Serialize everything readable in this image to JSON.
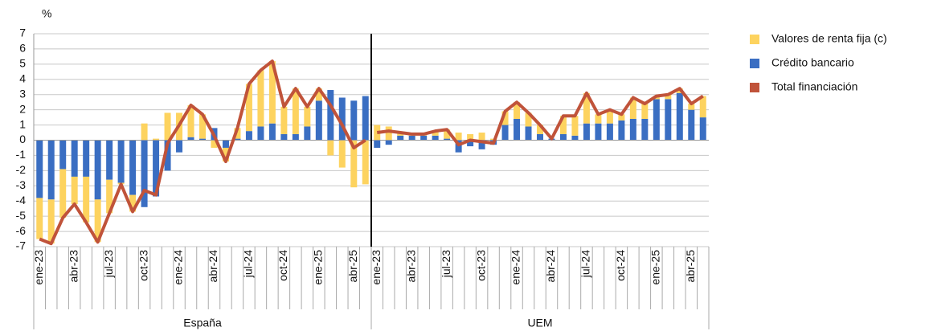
{
  "chart_data": {
    "type": "bar",
    "unit": "%",
    "groups": [
      "España",
      "UEM"
    ],
    "categories": [
      "ene-23",
      null,
      null,
      "abr-23",
      null,
      null,
      "jul-23",
      null,
      null,
      "oct-23",
      null,
      null,
      "ene-24",
      null,
      null,
      "abr-24",
      null,
      null,
      "jul-24",
      null,
      null,
      "oct-24",
      null,
      null,
      "ene-25",
      null,
      null,
      "abr-25",
      null
    ],
    "series": [
      {
        "name": "Valores de renta fija (c)",
        "color": "#fdd35f",
        "kind": "bar",
        "values": [
          [
            -2.7,
            -2.9,
            -3.2,
            -1.8,
            -3.0,
            -2.8,
            -2.2,
            -0.1,
            -1.1,
            1.1,
            0.1,
            1.8,
            1.8,
            2.1,
            1.6,
            -0.5,
            -0.9,
            0.7,
            3.1,
            3.7,
            4.1,
            1.8,
            3.0,
            1.3,
            0.8,
            -1.0,
            -1.8,
            -3.1,
            -2.9
          ],
          [
            1.0,
            0.9,
            0.2,
            0.1,
            0.1,
            0.3,
            0.6,
            0.5,
            0.4,
            0.5,
            0.1,
            0.9,
            1.1,
            0.9,
            0.6,
            0.0,
            1.2,
            1.3,
            2.0,
            0.6,
            0.9,
            0.4,
            1.4,
            1.0,
            0.2,
            0.3,
            0.3,
            0.4,
            1.4
          ]
        ]
      },
      {
        "name": "Crédito bancario",
        "color": "#3a6ec2",
        "kind": "bar",
        "values": [
          [
            -3.8,
            -3.9,
            -1.9,
            -2.4,
            -2.4,
            -3.9,
            -2.6,
            -2.8,
            -3.6,
            -4.4,
            -3.7,
            -2.0,
            -0.8,
            0.2,
            0.1,
            0.8,
            -0.5,
            0.1,
            0.6,
            0.9,
            1.1,
            0.4,
            0.4,
            0.9,
            2.6,
            3.3,
            2.8,
            2.6,
            2.9
          ],
          [
            -0.5,
            -0.3,
            0.3,
            0.3,
            0.3,
            0.3,
            0.1,
            -0.8,
            -0.4,
            -0.6,
            -0.3,
            1.0,
            1.4,
            0.9,
            0.4,
            0.1,
            0.4,
            0.3,
            1.1,
            1.1,
            1.1,
            1.3,
            1.4,
            1.4,
            2.7,
            2.7,
            3.1,
            2.0,
            1.5
          ]
        ]
      },
      {
        "name": "Total financiación",
        "color": "#c0533a",
        "kind": "line",
        "values": [
          [
            -6.5,
            -6.8,
            -5.1,
            -4.2,
            -5.4,
            -6.7,
            -4.8,
            -2.9,
            -4.7,
            -3.3,
            -3.6,
            -0.2,
            1.0,
            2.3,
            1.7,
            0.3,
            -1.4,
            0.8,
            3.7,
            4.6,
            5.2,
            2.2,
            3.4,
            2.2,
            3.4,
            2.3,
            1.0,
            -0.5,
            0.0
          ],
          [
            0.5,
            0.6,
            0.5,
            0.4,
            0.4,
            0.6,
            0.7,
            -0.3,
            0.0,
            -0.1,
            -0.2,
            1.9,
            2.5,
            1.8,
            1.0,
            0.1,
            1.6,
            1.6,
            3.1,
            1.7,
            2.0,
            1.7,
            2.8,
            2.4,
            2.9,
            3.0,
            3.4,
            2.4,
            2.9
          ]
        ]
      }
    ],
    "ylim": [
      -7,
      7
    ],
    "yticks": [
      -7,
      -6,
      -5,
      -4,
      -3,
      -2,
      -1,
      0,
      1,
      2,
      3,
      4,
      5,
      6,
      7
    ],
    "grid": true
  }
}
